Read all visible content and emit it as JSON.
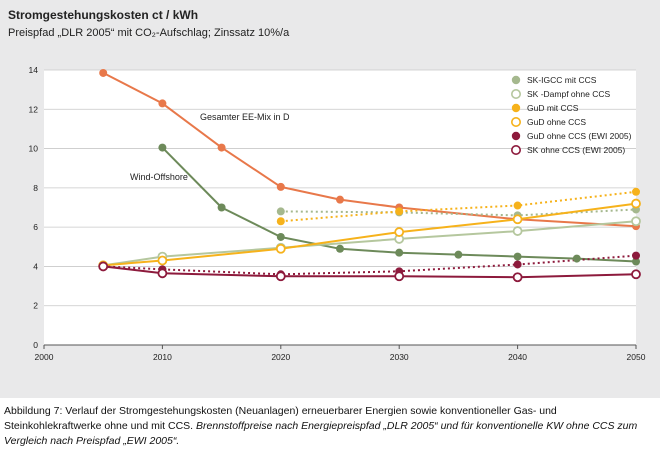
{
  "header": {
    "title": "Stromgestehungskosten ct / kWh",
    "subtitle": "Preispfad „DLR 2005“ mit CO₂-Aufschlag; Zinssatz 10%/a"
  },
  "caption": {
    "main": "Abbildung 7: Verlauf der Stromgestehungskosten (Neuanlagen) erneuerbarer Energien sowie konventioneller Gas- und Steinkohlekraftwerke ohne und mit CCS.",
    "italic": "Brennstoffpreise nach Energiepreispfad „DLR 2005“ und für konventionelle KW ohne CCS zum Vergleich nach Preispfad „EWI 2005“."
  },
  "chart_data": {
    "type": "line",
    "xlim": [
      2000,
      2050
    ],
    "ylim": [
      0,
      14
    ],
    "x_ticks": [
      2000,
      2010,
      2020,
      2030,
      2040,
      2050
    ],
    "y_ticks": [
      0,
      2,
      4,
      6,
      8,
      10,
      12,
      14
    ],
    "grid": "horizontal",
    "legend_position": "top-right",
    "annotations": [
      "Gesamter EE-Mix in D",
      "Wind-Offshore"
    ],
    "series": [
      {
        "name": "Gesamter EE-Mix in D",
        "color": "#e8784a",
        "marker": "filled",
        "style": "solid",
        "in_legend": false,
        "x": [
          2005,
          2010,
          2015,
          2020,
          2025,
          2030,
          2040,
          2050
        ],
        "y": [
          13.85,
          12.3,
          10.05,
          8.05,
          7.4,
          7.0,
          6.4,
          6.05
        ]
      },
      {
        "name": "Wind-Offshore",
        "color": "#6d8a5a",
        "marker": "filled",
        "style": "solid",
        "in_legend": false,
        "x": [
          2010,
          2015,
          2020,
          2025,
          2030,
          2035,
          2040,
          2045,
          2050
        ],
        "y": [
          10.05,
          7.0,
          5.5,
          4.9,
          4.7,
          4.6,
          4.5,
          4.4,
          4.25
        ]
      },
      {
        "name": "SK-IGCC mit CCS",
        "color": "#a5b88e",
        "marker": "filled",
        "style": "dotted",
        "in_legend": true,
        "x": [
          2020,
          2030,
          2040,
          2050
        ],
        "y": [
          6.8,
          6.75,
          6.6,
          6.9
        ]
      },
      {
        "name": "SK -Dampf ohne CCS",
        "color": "#b5c79e",
        "marker": "open",
        "style": "solid",
        "in_legend": true,
        "x": [
          2005,
          2010,
          2020,
          2030,
          2040,
          2050
        ],
        "y": [
          4.05,
          4.5,
          4.95,
          5.4,
          5.8,
          6.3
        ]
      },
      {
        "name": "GuD mit CCS",
        "color": "#f6b21b",
        "marker": "filled",
        "style": "dotted",
        "in_legend": true,
        "x": [
          2020,
          2030,
          2040,
          2050
        ],
        "y": [
          6.3,
          6.8,
          7.1,
          7.8
        ]
      },
      {
        "name": "GuD ohne CCS",
        "color": "#f6b21b",
        "marker": "open",
        "style": "solid",
        "in_legend": true,
        "x": [
          2005,
          2010,
          2020,
          2030,
          2040,
          2050
        ],
        "y": [
          4.05,
          4.3,
          4.9,
          5.75,
          6.4,
          7.2
        ]
      },
      {
        "name": "GuD ohne CCS (EWI 2005)",
        "color": "#8d1a3c",
        "marker": "filled",
        "style": "dotted",
        "in_legend": true,
        "x": [
          2005,
          2010,
          2020,
          2030,
          2040,
          2050
        ],
        "y": [
          4.0,
          3.85,
          3.6,
          3.75,
          4.1,
          4.55
        ]
      },
      {
        "name": "SK ohne CCS (EWI 2005)",
        "color": "#8d1a3c",
        "marker": "open",
        "style": "solid",
        "in_legend": true,
        "x": [
          2005,
          2010,
          2020,
          2030,
          2040,
          2050
        ],
        "y": [
          4.0,
          3.65,
          3.5,
          3.5,
          3.45,
          3.6
        ]
      }
    ]
  }
}
